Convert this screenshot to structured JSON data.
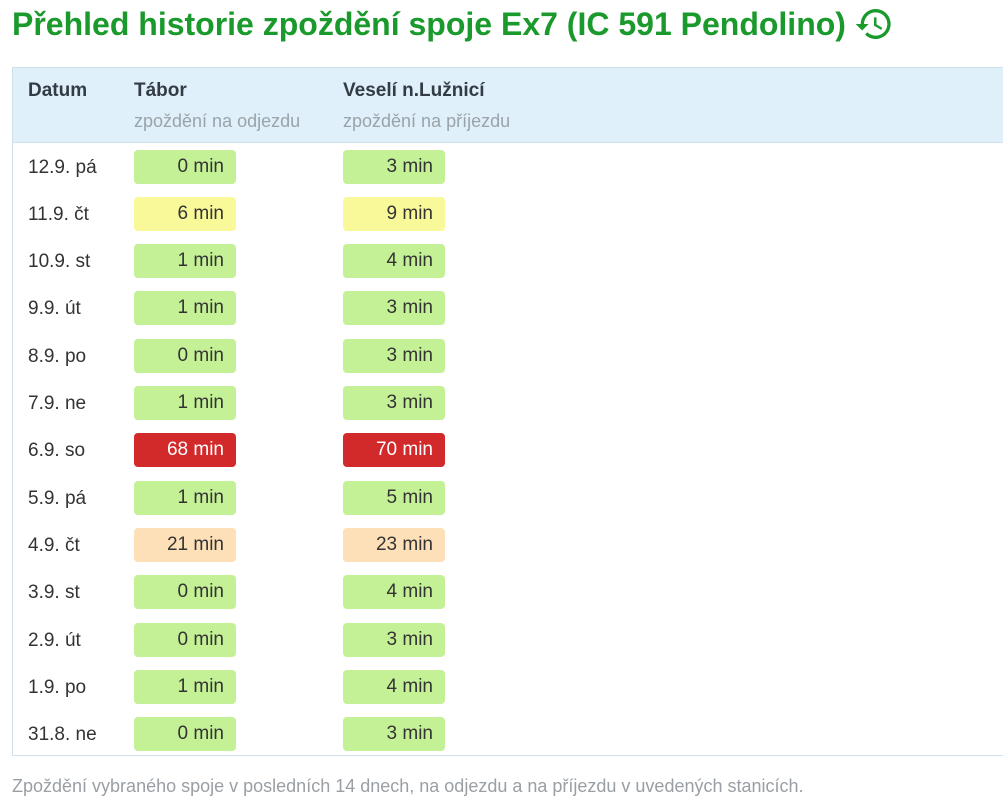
{
  "header": {
    "title": "Přehled historie zpoždění spoje Ex7 (IC 591 Pendolino)",
    "icon": "history-icon",
    "accent_color": "#1a9a2c"
  },
  "table": {
    "columns": [
      {
        "label": "Datum",
        "sublabel": ""
      },
      {
        "label": "Tábor",
        "sublabel": "zpoždění na odjezdu"
      },
      {
        "label": "Veselí n.Lužnicí",
        "sublabel": "zpoždění na příjezdu"
      }
    ],
    "rows": [
      {
        "date": "12.9. pá",
        "tabor": "0 min",
        "tabor_level": "ok",
        "veseli": "3 min",
        "veseli_level": "ok"
      },
      {
        "date": "11.9. čt",
        "tabor": "6 min",
        "tabor_level": "low",
        "veseli": "9 min",
        "veseli_level": "low"
      },
      {
        "date": "10.9. st",
        "tabor": "1 min",
        "tabor_level": "ok",
        "veseli": "4 min",
        "veseli_level": "ok"
      },
      {
        "date": "9.9. út",
        "tabor": "1 min",
        "tabor_level": "ok",
        "veseli": "3 min",
        "veseli_level": "ok"
      },
      {
        "date": "8.9. po",
        "tabor": "0 min",
        "tabor_level": "ok",
        "veseli": "3 min",
        "veseli_level": "ok"
      },
      {
        "date": "7.9. ne",
        "tabor": "1 min",
        "tabor_level": "ok",
        "veseli": "3 min",
        "veseli_level": "ok"
      },
      {
        "date": "6.9. so",
        "tabor": "68 min",
        "tabor_level": "high",
        "veseli": "70 min",
        "veseli_level": "high"
      },
      {
        "date": "5.9. pá",
        "tabor": "1 min",
        "tabor_level": "ok",
        "veseli": "5 min",
        "veseli_level": "ok"
      },
      {
        "date": "4.9. čt",
        "tabor": "21 min",
        "tabor_level": "mid",
        "veseli": "23 min",
        "veseli_level": "mid"
      },
      {
        "date": "3.9. st",
        "tabor": "0 min",
        "tabor_level": "ok",
        "veseli": "4 min",
        "veseli_level": "ok"
      },
      {
        "date": "2.9. út",
        "tabor": "0 min",
        "tabor_level": "ok",
        "veseli": "3 min",
        "veseli_level": "ok"
      },
      {
        "date": "1.9. po",
        "tabor": "1 min",
        "tabor_level": "ok",
        "veseli": "4 min",
        "veseli_level": "ok"
      },
      {
        "date": "31.8. ne",
        "tabor": "0 min",
        "tabor_level": "ok",
        "veseli": "3 min",
        "veseli_level": "ok"
      }
    ],
    "level_colors": {
      "ok": "#c5f196",
      "low": "#f9f99a",
      "mid": "#fde0b8",
      "high": "#d22a2a"
    }
  },
  "footnote": "Zpoždění vybraného spoje v posledních 14 dnech, na odjezdu a na příjezdu v uvedených stanicích."
}
